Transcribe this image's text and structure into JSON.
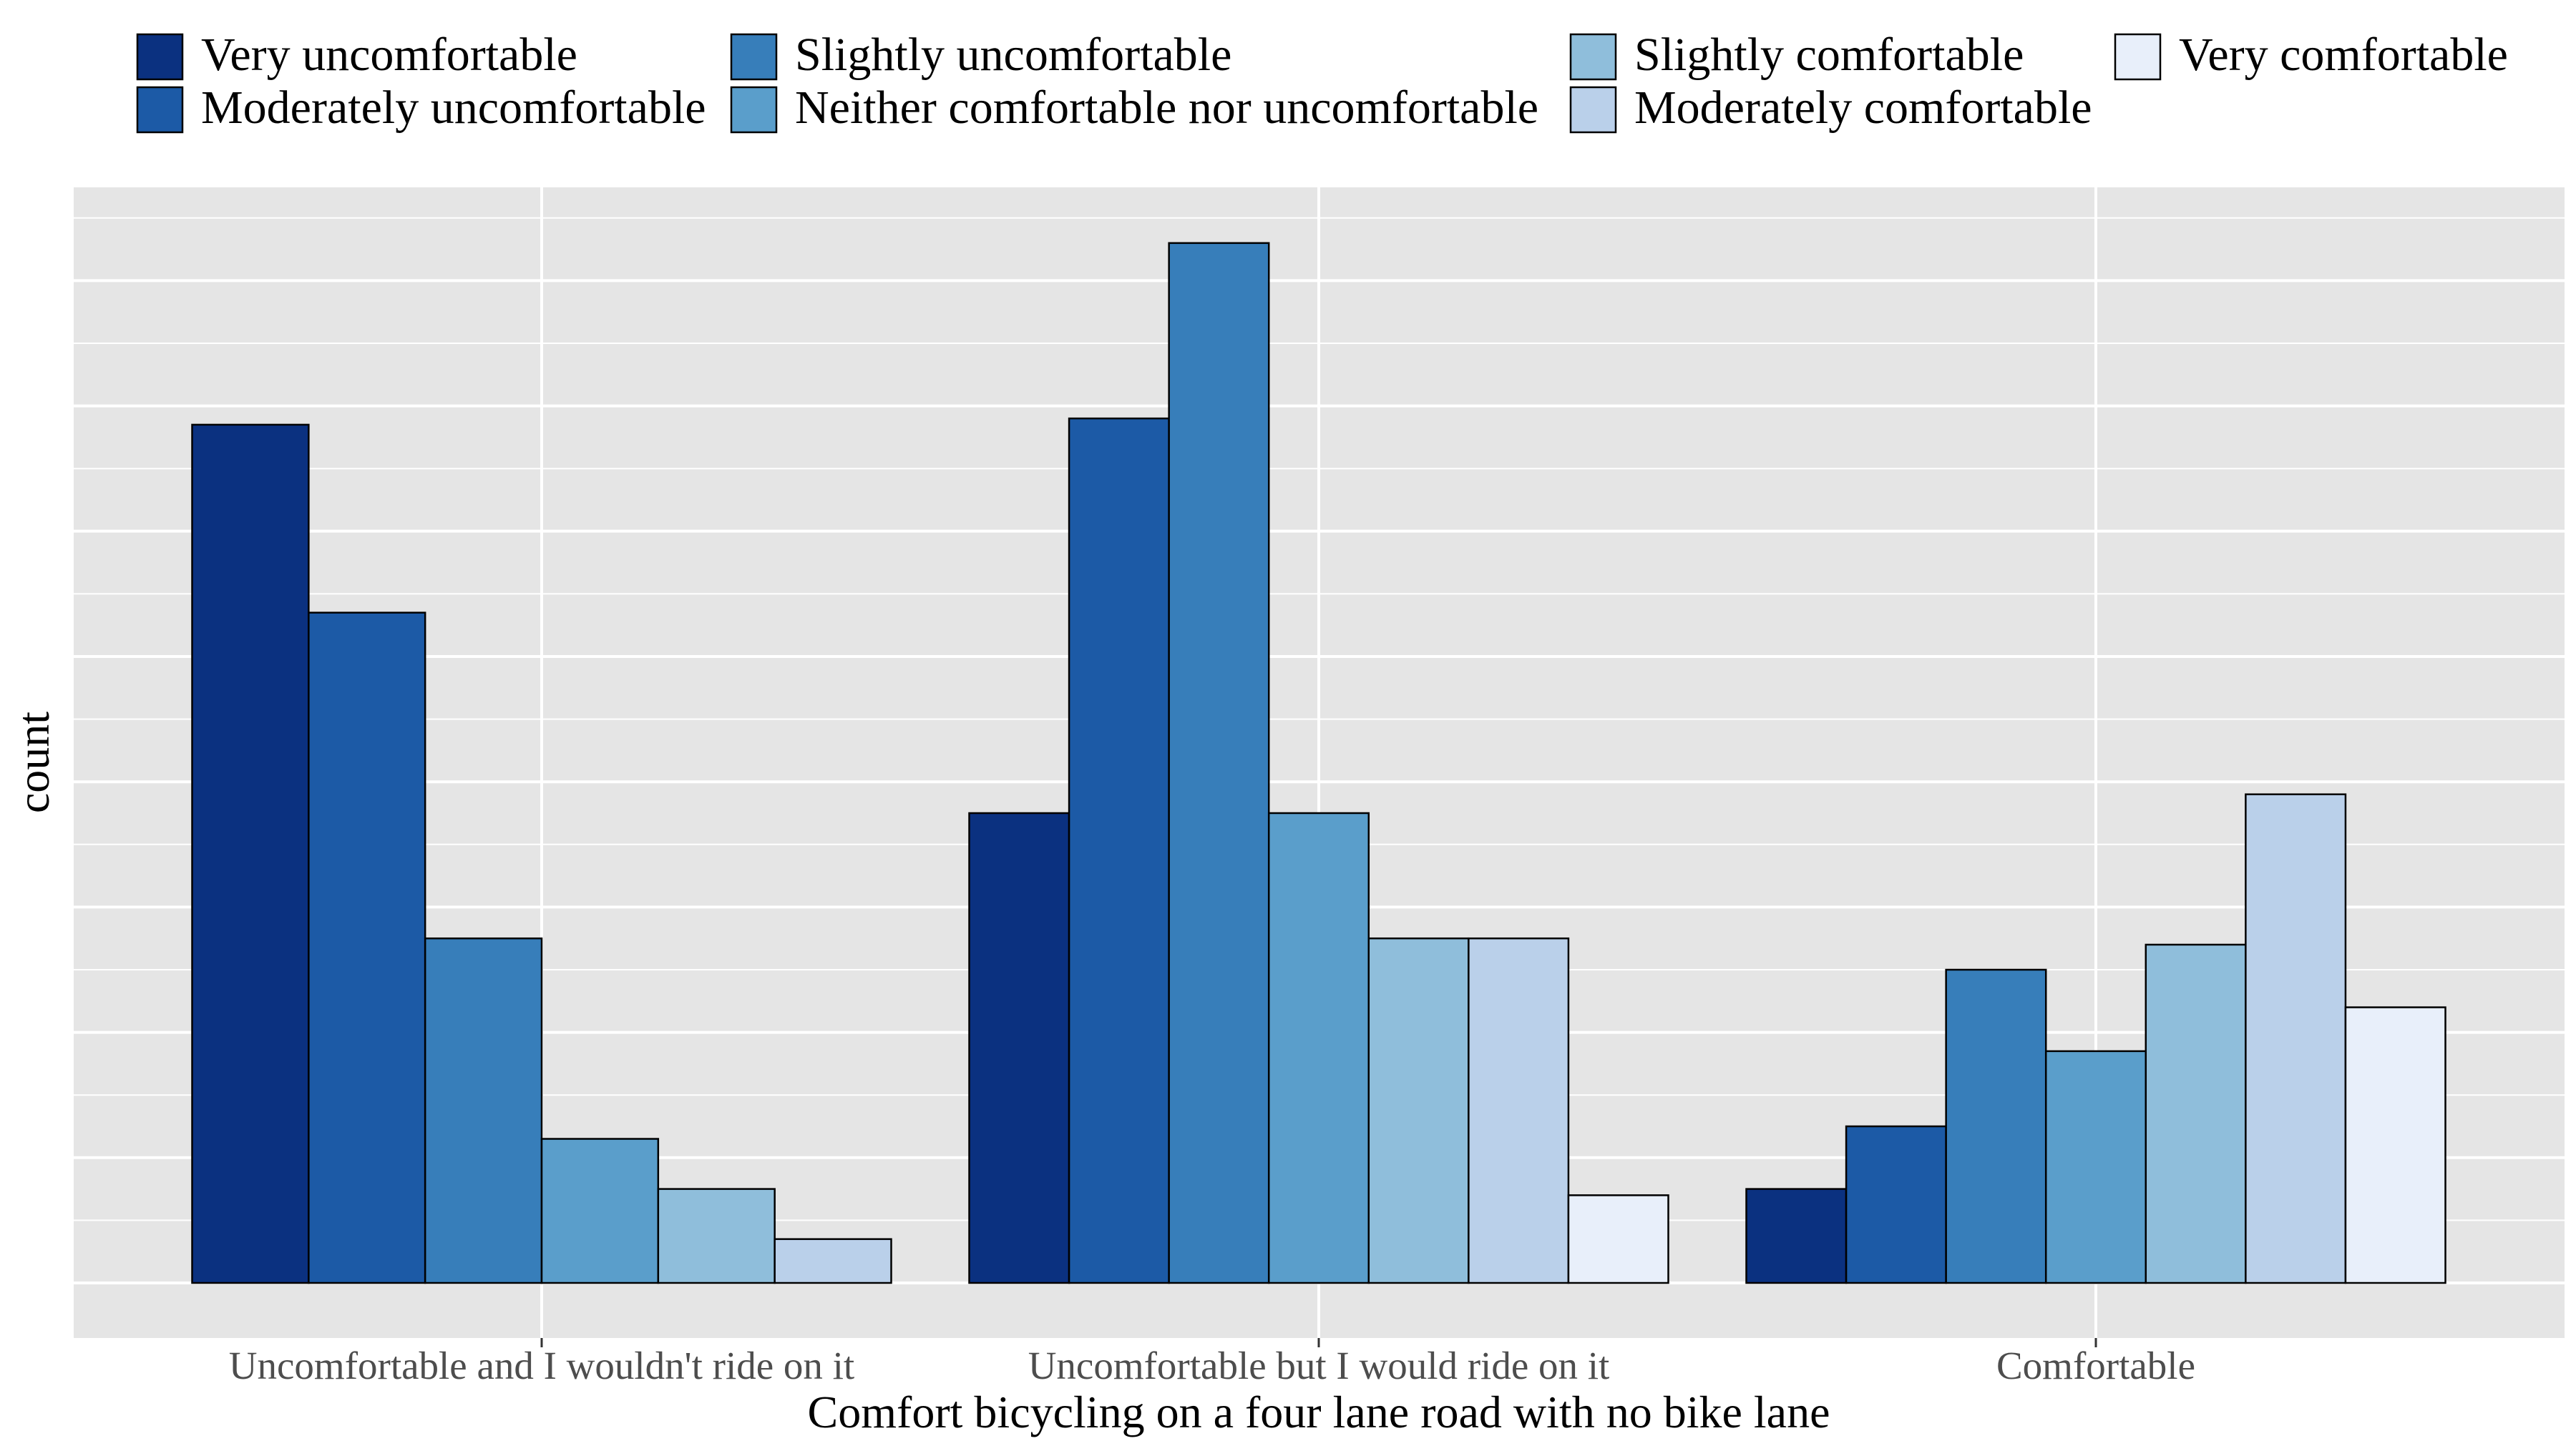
{
  "chart_data": {
    "type": "bar",
    "title": "",
    "xlabel": "Comfort bicycling on a four lane road with no bike lane",
    "ylabel": "count",
    "y_tick_labels_shown": false,
    "ylim": [
      -9,
      175
    ],
    "grid": true,
    "legend_position": "top",
    "categories": [
      "Uncomfortable and I wouldn't ride on it",
      "Uncomfortable but I would ride on it",
      "Comfortable"
    ],
    "series": [
      {
        "name": "Very uncomfortable",
        "color": "#0b3180",
        "values": [
          137,
          75,
          15
        ]
      },
      {
        "name": "Moderately uncomfortable",
        "color": "#1c5aa6",
        "values": [
          107,
          138,
          25
        ]
      },
      {
        "name": "Slightly uncomfortable",
        "color": "#377eba",
        "values": [
          55,
          166,
          50
        ]
      },
      {
        "name": "Neither comfortable nor uncomfortable",
        "color": "#5a9ecb",
        "values": [
          23,
          75,
          37
        ]
      },
      {
        "name": "Slightly comfortable",
        "color": "#8fbedb",
        "values": [
          15,
          55,
          54
        ]
      },
      {
        "name": "Moderately comfortable",
        "color": "#bad0ea",
        "values": [
          7,
          55,
          78
        ]
      },
      {
        "name": "Very comfortable",
        "color": "#e8effa",
        "values": [
          null,
          14,
          44
        ]
      }
    ]
  }
}
